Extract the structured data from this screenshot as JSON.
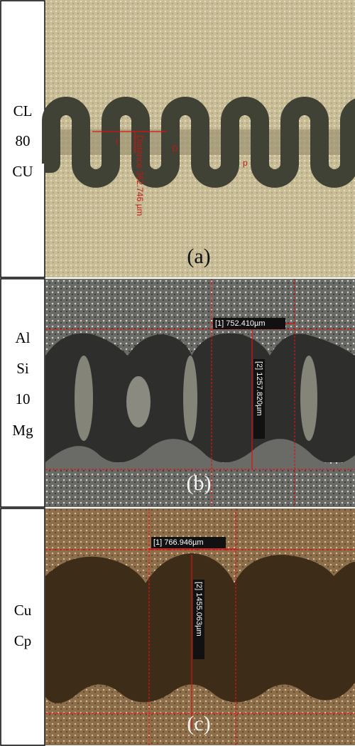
{
  "panels": [
    {
      "labels": [
        "CL",
        "80",
        "CU"
      ],
      "tag": "(a)",
      "annotations": [
        "t",
        "D",
        "p",
        "Distance 362.746 µm"
      ]
    },
    {
      "labels": [
        "Al",
        "Si",
        "10",
        "Mg"
      ],
      "tag": "(b)",
      "annotations": [
        "[1] 752.410µm",
        "[2] 1257.820µm"
      ]
    },
    {
      "labels": [
        "Cu",
        "Cp"
      ],
      "tag": "(c)",
      "annotations": [
        "[1] 766.946µm",
        "[2] 1455.063µm"
      ]
    }
  ]
}
